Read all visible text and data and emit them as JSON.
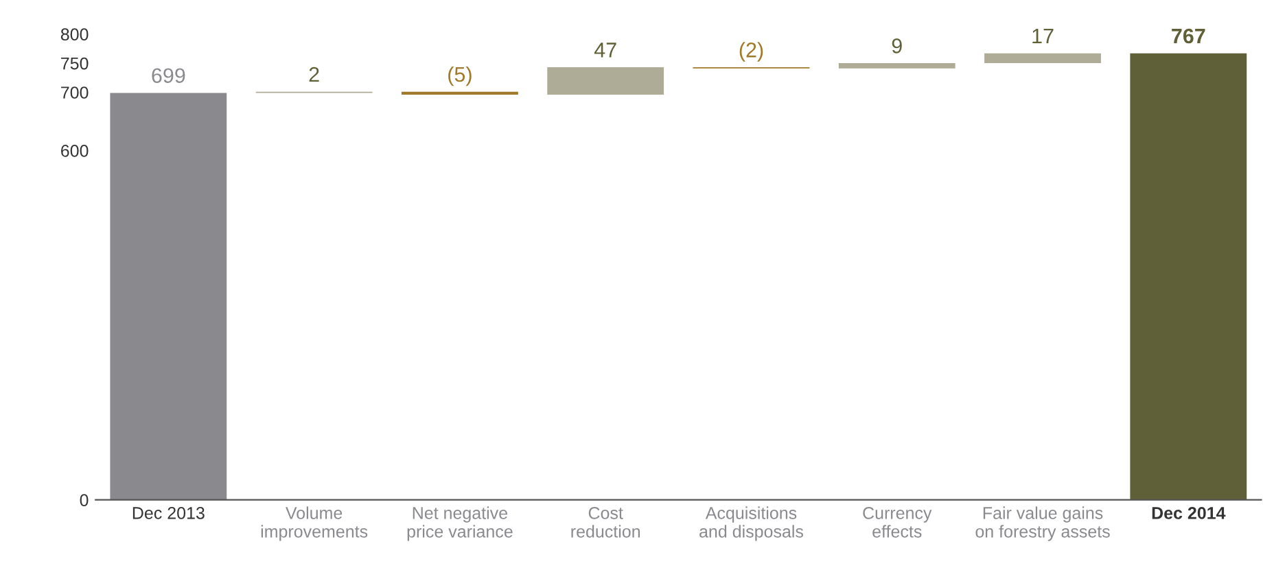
{
  "chart_data": {
    "type": "bar",
    "categories": [
      "Dec 2013",
      "Volume\nimprovements",
      "Net negative\nprice variance",
      "Cost\nreduction",
      "Acquisitions\nand disposals",
      "Currency\neffects",
      "Fair value gains\non forestry assets",
      "Dec 2014"
    ],
    "values": [
      699,
      2,
      -5,
      47,
      -2,
      9,
      17,
      767
    ],
    "base": [
      0,
      699,
      701,
      696,
      743,
      741,
      750,
      0
    ],
    "colors": [
      "#8a898e",
      "#aeac96",
      "#a07a2a",
      "#aeac96",
      "#a07a2a",
      "#aeac96",
      "#aeac96",
      "#5f5f38"
    ],
    "value_labels": [
      "699",
      "2",
      "(5)",
      "47",
      "(2)",
      "9",
      "17",
      "767"
    ],
    "ylim": [
      0,
      800
    ],
    "yticks": [
      0,
      600,
      700,
      750,
      800
    ],
    "grid": false,
    "legend": false
  }
}
